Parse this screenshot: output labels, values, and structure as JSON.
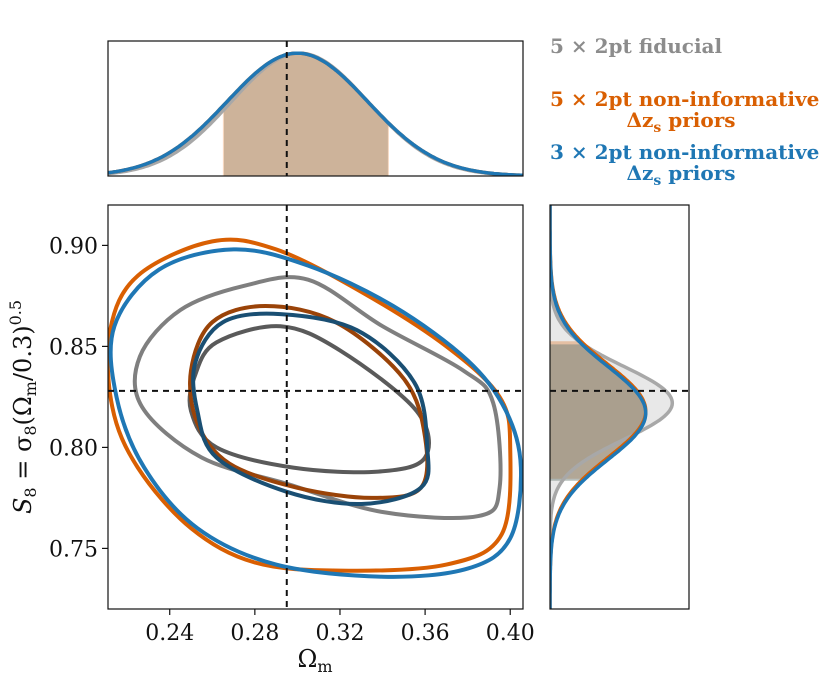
{
  "chart_data": {
    "type": "contour",
    "title": "",
    "xlabel": "Ωm",
    "ylabel": "S8 = σ8(Ωm/0.3)^0.5",
    "xlabel_main": "Ω",
    "xlabel_sub": "m",
    "ylabel_parts": {
      "s": "S",
      "s_sub": "8",
      "eq": " = σ",
      "sigma_sub": "8",
      "open": "(Ω",
      "omega_sub": "m",
      "close": "/0.3)",
      "exponent": "0.5"
    },
    "xlim": [
      0.211,
      0.406
    ],
    "ylim": [
      0.72,
      0.92
    ],
    "xticks": [
      0.24,
      0.28,
      0.32,
      0.36,
      0.4
    ],
    "xtick_labels": [
      "0.24",
      "0.28",
      "0.32",
      "0.36",
      "0.40"
    ],
    "yticks": [
      0.75,
      0.8,
      0.85,
      0.9
    ],
    "ytick_labels": [
      "0.75",
      "0.80",
      "0.85",
      "0.90"
    ],
    "fiducial": {
      "omega_m": 0.295,
      "s8": 0.828
    },
    "series": [
      {
        "name": "5 × 2pt fiducial",
        "color": "#7f7f7f",
        "inner_color": "#5a5a5a",
        "omega_m": {
          "mean": 0.301,
          "sigma": 0.032,
          "band": [
            0.2655,
            0.3425
          ]
        },
        "s8": {
          "mean": 0.822,
          "sigma": 0.018
        },
        "contour_68": [
          [
            0.252,
            0.836
          ],
          [
            0.262,
            0.852
          ],
          [
            0.292,
            0.86
          ],
          [
            0.32,
            0.848
          ],
          [
            0.356,
            0.818
          ],
          [
            0.36,
            0.795
          ],
          [
            0.338,
            0.788
          ],
          [
            0.298,
            0.79
          ],
          [
            0.262,
            0.8
          ],
          [
            0.25,
            0.818
          ]
        ],
        "contour_95": [
          [
            0.226,
            0.845
          ],
          [
            0.245,
            0.868
          ],
          [
            0.275,
            0.88
          ],
          [
            0.305,
            0.883
          ],
          [
            0.34,
            0.86
          ],
          [
            0.378,
            0.838
          ],
          [
            0.392,
            0.822
          ],
          [
            0.395,
            0.78
          ],
          [
            0.385,
            0.766
          ],
          [
            0.34,
            0.768
          ],
          [
            0.295,
            0.782
          ],
          [
            0.255,
            0.795
          ],
          [
            0.227,
            0.82
          ]
        ]
      },
      {
        "name": "5 × 2pt non-informative Δzs priors",
        "color": "#d95f02",
        "inner_color": "#9a4308",
        "omega_m": {
          "mean": 0.3,
          "sigma": 0.033,
          "band": [
            0.265,
            0.343
          ]
        },
        "s8": {
          "mean": 0.818,
          "sigma": 0.023,
          "band": [
            0.7845,
            0.8525
          ]
        },
        "contour_68": [
          [
            0.25,
            0.838
          ],
          [
            0.26,
            0.862
          ],
          [
            0.285,
            0.87
          ],
          [
            0.318,
            0.862
          ],
          [
            0.35,
            0.834
          ],
          [
            0.36,
            0.805
          ],
          [
            0.358,
            0.78
          ],
          [
            0.335,
            0.775
          ],
          [
            0.3,
            0.78
          ],
          [
            0.268,
            0.792
          ],
          [
            0.253,
            0.812
          ]
        ],
        "contour_95": [
          [
            0.212,
            0.858
          ],
          [
            0.225,
            0.885
          ],
          [
            0.26,
            0.902
          ],
          [
            0.29,
            0.898
          ],
          [
            0.33,
            0.877
          ],
          [
            0.37,
            0.85
          ],
          [
            0.395,
            0.825
          ],
          [
            0.4,
            0.8
          ],
          [
            0.396,
            0.757
          ],
          [
            0.37,
            0.742
          ],
          [
            0.32,
            0.739
          ],
          [
            0.28,
            0.743
          ],
          [
            0.25,
            0.76
          ],
          [
            0.225,
            0.79
          ],
          [
            0.213,
            0.82
          ]
        ]
      },
      {
        "name": "3 × 2pt non-informative Δzs priors",
        "color": "#1f77b4",
        "inner_color": "#1a4f73",
        "omega_m": {
          "mean": 0.3,
          "sigma": 0.033
        },
        "s8": {
          "mean": 0.817,
          "sigma": 0.023,
          "band": [
            0.7835,
            0.851
          ]
        },
        "contour_68": [
          [
            0.252,
            0.842
          ],
          [
            0.265,
            0.862
          ],
          [
            0.292,
            0.866
          ],
          [
            0.328,
            0.858
          ],
          [
            0.355,
            0.832
          ],
          [
            0.361,
            0.8
          ],
          [
            0.358,
            0.78
          ],
          [
            0.33,
            0.772
          ],
          [
            0.295,
            0.778
          ],
          [
            0.262,
            0.795
          ],
          [
            0.253,
            0.818
          ]
        ],
        "contour_95": [
          [
            0.214,
            0.86
          ],
          [
            0.235,
            0.888
          ],
          [
            0.27,
            0.898
          ],
          [
            0.305,
            0.89
          ],
          [
            0.345,
            0.87
          ],
          [
            0.38,
            0.843
          ],
          [
            0.398,
            0.818
          ],
          [
            0.405,
            0.79
          ],
          [
            0.4,
            0.755
          ],
          [
            0.38,
            0.74
          ],
          [
            0.34,
            0.736
          ],
          [
            0.29,
            0.742
          ],
          [
            0.253,
            0.76
          ],
          [
            0.228,
            0.79
          ],
          [
            0.215,
            0.825
          ]
        ]
      }
    ]
  },
  "legend": {
    "fiducial": {
      "line1": "5 × 2pt fiducial",
      "color": "#8c8c8c"
    },
    "five_noninf": {
      "line1": "5 × 2pt non-informative",
      "line2_pre": "Δz",
      "line2_sub": "s",
      "line2_post": " priors",
      "color": "#d95f02"
    },
    "three_noninf": {
      "line1": "3 × 2pt non-informative",
      "line2_pre": "Δz",
      "line2_sub": "s",
      "line2_post": " priors",
      "color": "#1f77b4"
    }
  }
}
